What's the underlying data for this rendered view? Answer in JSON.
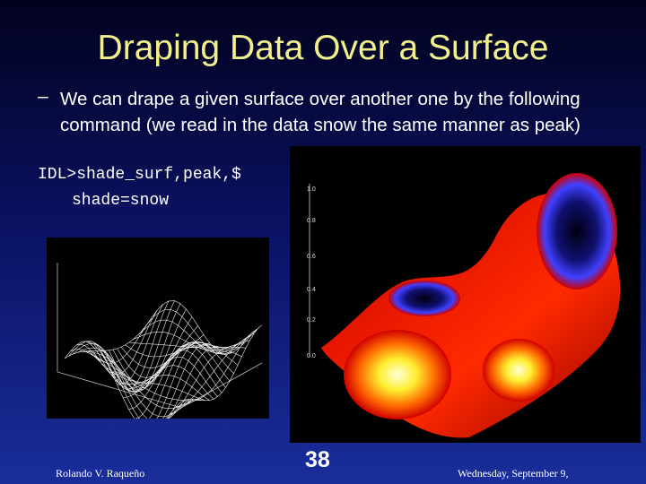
{
  "slide": {
    "title": "Draping Data Over a Surface",
    "bullet": {
      "marker": "–",
      "text": "We can drape a given surface over another one by the following command (we read in the data snow the same manner as peak)"
    },
    "code": [
      "IDL>shade_surf,peak,$",
      "shade=snow"
    ],
    "right_image_axis_labels": [
      "1.0",
      "0.8",
      "0.6",
      "0.4",
      "0.2",
      "0.0"
    ],
    "footer": {
      "author": "Rolando V. Raqueño",
      "page": "38",
      "date": "Wednesday, September 9,"
    }
  }
}
